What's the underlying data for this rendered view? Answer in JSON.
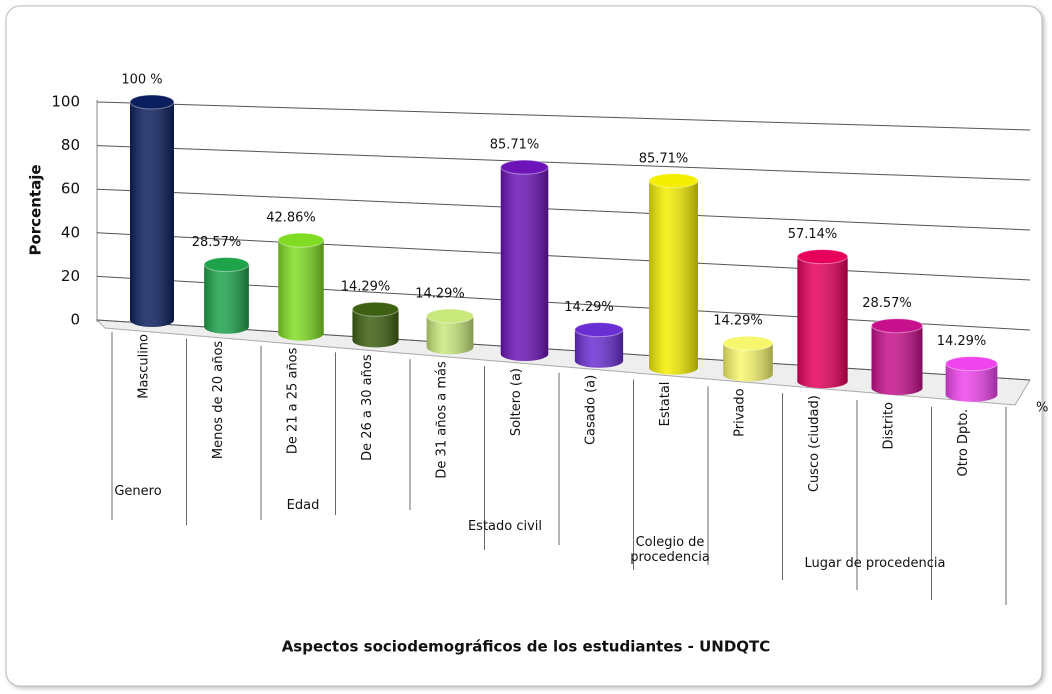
{
  "chart_data": {
    "type": "bar",
    "title": "Aspectos sociodemográficos de los estudiantes - UNDQTC",
    "y_label": "Porcentaje",
    "unit_label": "%",
    "categories": [
      "Masculino",
      "Menos de 20 años",
      "De 21 a 25 años",
      "De 26 a 30 años",
      "De 31 años a más",
      "Soltero (a)",
      "Casado (a)",
      "Estatal",
      "Privado",
      "Cusco (ciudad)",
      "Distrito",
      "Otro Dpto."
    ],
    "values": [
      100,
      28.57,
      42.86,
      14.29,
      14.29,
      85.71,
      14.29,
      85.71,
      14.29,
      57.14,
      28.57,
      14.29
    ],
    "value_labels": [
      "100 %",
      "28.57%",
      "42.86%",
      "14.29%",
      "14.29%",
      "85.71%",
      "14.29%",
      "85.71%",
      "14.29%",
      "57.14%",
      "28.57%",
      "14.29%"
    ],
    "colors": [
      "#0b1f5e",
      "#1ea34b",
      "#7fdc22",
      "#3e6012",
      "#c8e87c",
      "#6c14b8",
      "#6a2ed2",
      "#f4ee00",
      "#f7f76e",
      "#e6005c",
      "#c7108c",
      "#f044ee"
    ],
    "groups": [
      "Genero",
      "Edad",
      "Estado civil",
      "Colegio de procedencia",
      "Lugar de procedencia"
    ],
    "ylim": [
      0,
      100
    ],
    "yticks": [
      0,
      20,
      40,
      60,
      80,
      100
    ],
    "grid": true
  }
}
